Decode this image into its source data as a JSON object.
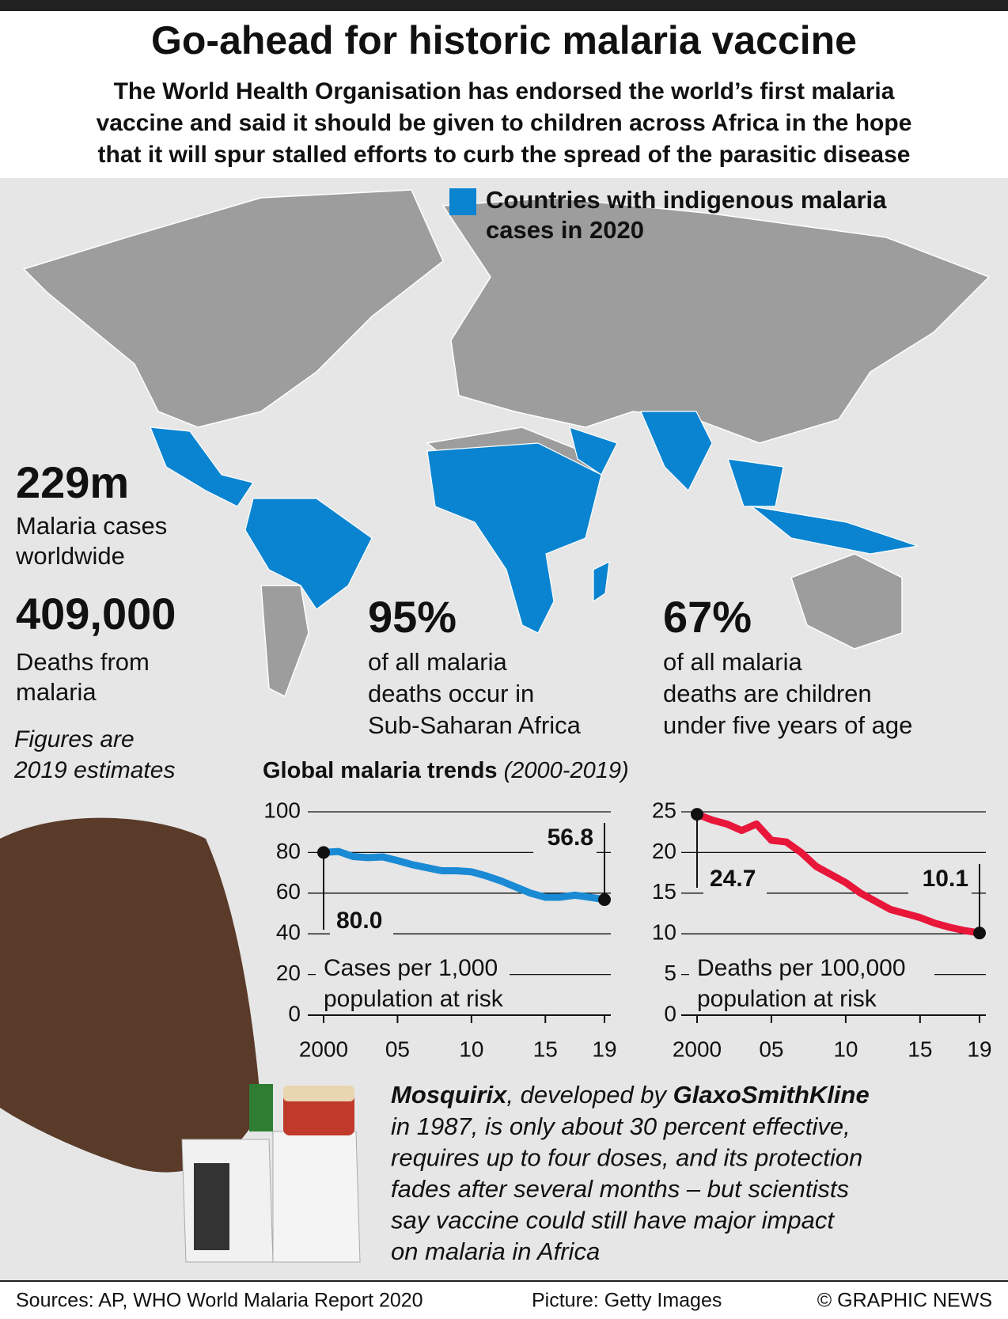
{
  "header": {
    "title": "Go-ahead for historic malaria vaccine",
    "subtitle": [
      "The World Health Organisation has endorsed the world’s first malaria",
      "vaccine and said it should be given to children across Africa in the hope",
      "that it will spur stalled efforts to curb the spread of the parasitic disease"
    ]
  },
  "legend": {
    "label": [
      "Countries with indigenous malaria",
      "cases in 2020"
    ],
    "color": "#0a84d0"
  },
  "stats": [
    {
      "value": "229m",
      "text": [
        "Malaria cases",
        "worldwide"
      ]
    },
    {
      "value": "409,000",
      "text": [
        "Deaths from",
        "malaria"
      ]
    },
    {
      "value": "95%",
      "text": [
        "of all malaria",
        "deaths occur in",
        "Sub-Saharan Africa"
      ]
    },
    {
      "value": "67%",
      "text": [
        "of all malaria",
        "deaths are children",
        "under five years of age"
      ]
    }
  ],
  "note": [
    "Figures are",
    "2019 estimates"
  ],
  "trends": {
    "title": "Global malaria trends",
    "period": "(2000-2019)"
  },
  "chart_data": [
    {
      "type": "line",
      "color": "#1a8ad4",
      "x": [
        2000,
        2001,
        2002,
        2003,
        2004,
        2005,
        2006,
        2007,
        2008,
        2009,
        2010,
        2011,
        2012,
        2013,
        2014,
        2015,
        2016,
        2017,
        2018,
        2019
      ],
      "values": [
        80.0,
        80.5,
        78,
        77.5,
        77.8,
        76,
        74,
        72.5,
        71,
        71,
        70.5,
        68.5,
        66,
        63,
        60,
        58,
        58,
        59,
        58,
        56.8
      ],
      "value_labels": [
        "80.0",
        null,
        null,
        null,
        null,
        null,
        null,
        null,
        null,
        null,
        null,
        null,
        null,
        null,
        null,
        null,
        null,
        null,
        null,
        "56.8"
      ],
      "xlim": [
        2000,
        2019
      ],
      "xticks": [
        2000,
        {
          "value": 2005,
          "label": "05"
        },
        {
          "value": 2010,
          "label": "10"
        },
        {
          "value": 2015,
          "label": "15"
        },
        {
          "value": 2019,
          "label": "19"
        }
      ],
      "ylim": [
        0,
        100
      ],
      "yticks": [
        0,
        20,
        40,
        60,
        80,
        100
      ],
      "ylabel": [
        "Cases per 1,000",
        "population at risk"
      ]
    },
    {
      "type": "line",
      "color": "#e8173a",
      "x": [
        2000,
        2001,
        2002,
        2003,
        2004,
        2005,
        2006,
        2007,
        2008,
        2009,
        2010,
        2011,
        2012,
        2013,
        2014,
        2015,
        2016,
        2017,
        2018,
        2019
      ],
      "values": [
        24.7,
        24,
        23.5,
        22.7,
        23.5,
        21.5,
        21.3,
        20,
        18.3,
        17.3,
        16.3,
        15,
        14,
        13,
        12.5,
        12,
        11.3,
        10.8,
        10.4,
        10.1
      ],
      "value_labels": [
        "24.7",
        null,
        null,
        null,
        null,
        null,
        null,
        null,
        null,
        null,
        null,
        null,
        null,
        null,
        null,
        null,
        null,
        null,
        null,
        "10.1"
      ],
      "xlim": [
        2000,
        2019
      ],
      "xticks": [
        2000,
        {
          "value": 2005,
          "label": "05"
        },
        {
          "value": 2010,
          "label": "10"
        },
        {
          "value": 2015,
          "label": "15"
        },
        {
          "value": 2019,
          "label": "19"
        }
      ],
      "ylim": [
        0,
        25
      ],
      "yticks": [
        0,
        5,
        10,
        15,
        20,
        25
      ],
      "ylabel": [
        "Deaths per 100,000",
        "population at risk"
      ]
    }
  ],
  "description": {
    "first": [
      "Mosquirix",
      ", developed by ",
      "GlaxoSmithKline"
    ],
    "lines": [
      "in 1987, is only about 30 percent effective,",
      "requires up to four doses, and its protection",
      "fades after several months – but scientists",
      "say vaccine could still have major impact",
      "on malaria in Africa"
    ]
  },
  "footer": {
    "sources": "Sources: AP, WHO World Malaria Report 2020",
    "picture": "Picture: Getty Images",
    "credit": "© GRAPHIC NEWS"
  }
}
